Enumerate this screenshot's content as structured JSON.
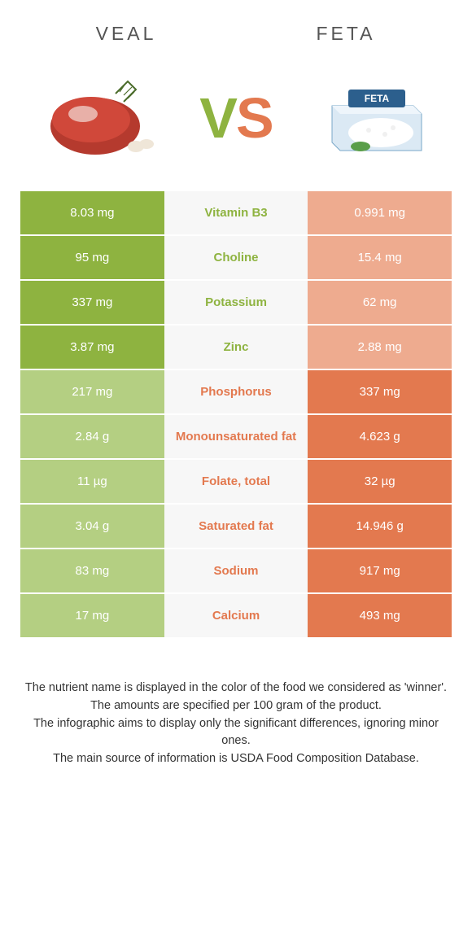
{
  "header": {
    "left_title": "VEAL",
    "right_title": "FETA",
    "vs_v": "V",
    "vs_s": "S"
  },
  "colors": {
    "green_winner": "#8eb340",
    "green_loser": "#b4cf82",
    "orange_winner": "#e3794f",
    "orange_loser": "#eeab8f",
    "mid_bg": "#f7f7f7",
    "text_dark": "#333333",
    "header_text": "#545454"
  },
  "rows": [
    {
      "nutrient": "Vitamin B3",
      "left": "8.03 mg",
      "right": "0.991 mg",
      "winner": "left"
    },
    {
      "nutrient": "Choline",
      "left": "95 mg",
      "right": "15.4 mg",
      "winner": "left"
    },
    {
      "nutrient": "Potassium",
      "left": "337 mg",
      "right": "62 mg",
      "winner": "left"
    },
    {
      "nutrient": "Zinc",
      "left": "3.87 mg",
      "right": "2.88 mg",
      "winner": "left"
    },
    {
      "nutrient": "Phosphorus",
      "left": "217 mg",
      "right": "337 mg",
      "winner": "right"
    },
    {
      "nutrient": "Monounsaturated fat",
      "left": "2.84 g",
      "right": "4.623 g",
      "winner": "right"
    },
    {
      "nutrient": "Folate, total",
      "left": "11 µg",
      "right": "32 µg",
      "winner": "right"
    },
    {
      "nutrient": "Saturated fat",
      "left": "3.04 g",
      "right": "14.946 g",
      "winner": "right"
    },
    {
      "nutrient": "Sodium",
      "left": "83 mg",
      "right": "917 mg",
      "winner": "right"
    },
    {
      "nutrient": "Calcium",
      "left": "17 mg",
      "right": "493 mg",
      "winner": "right"
    }
  ],
  "footer": {
    "line1": "The nutrient name is displayed in the color of the food we considered as 'winner'.",
    "line2": "The amounts are specified per 100 gram of the product.",
    "line3": "The infographic aims to display only the significant differences, ignoring minor ones.",
    "line4": "The main source of information is USDA Food Composition Database."
  }
}
